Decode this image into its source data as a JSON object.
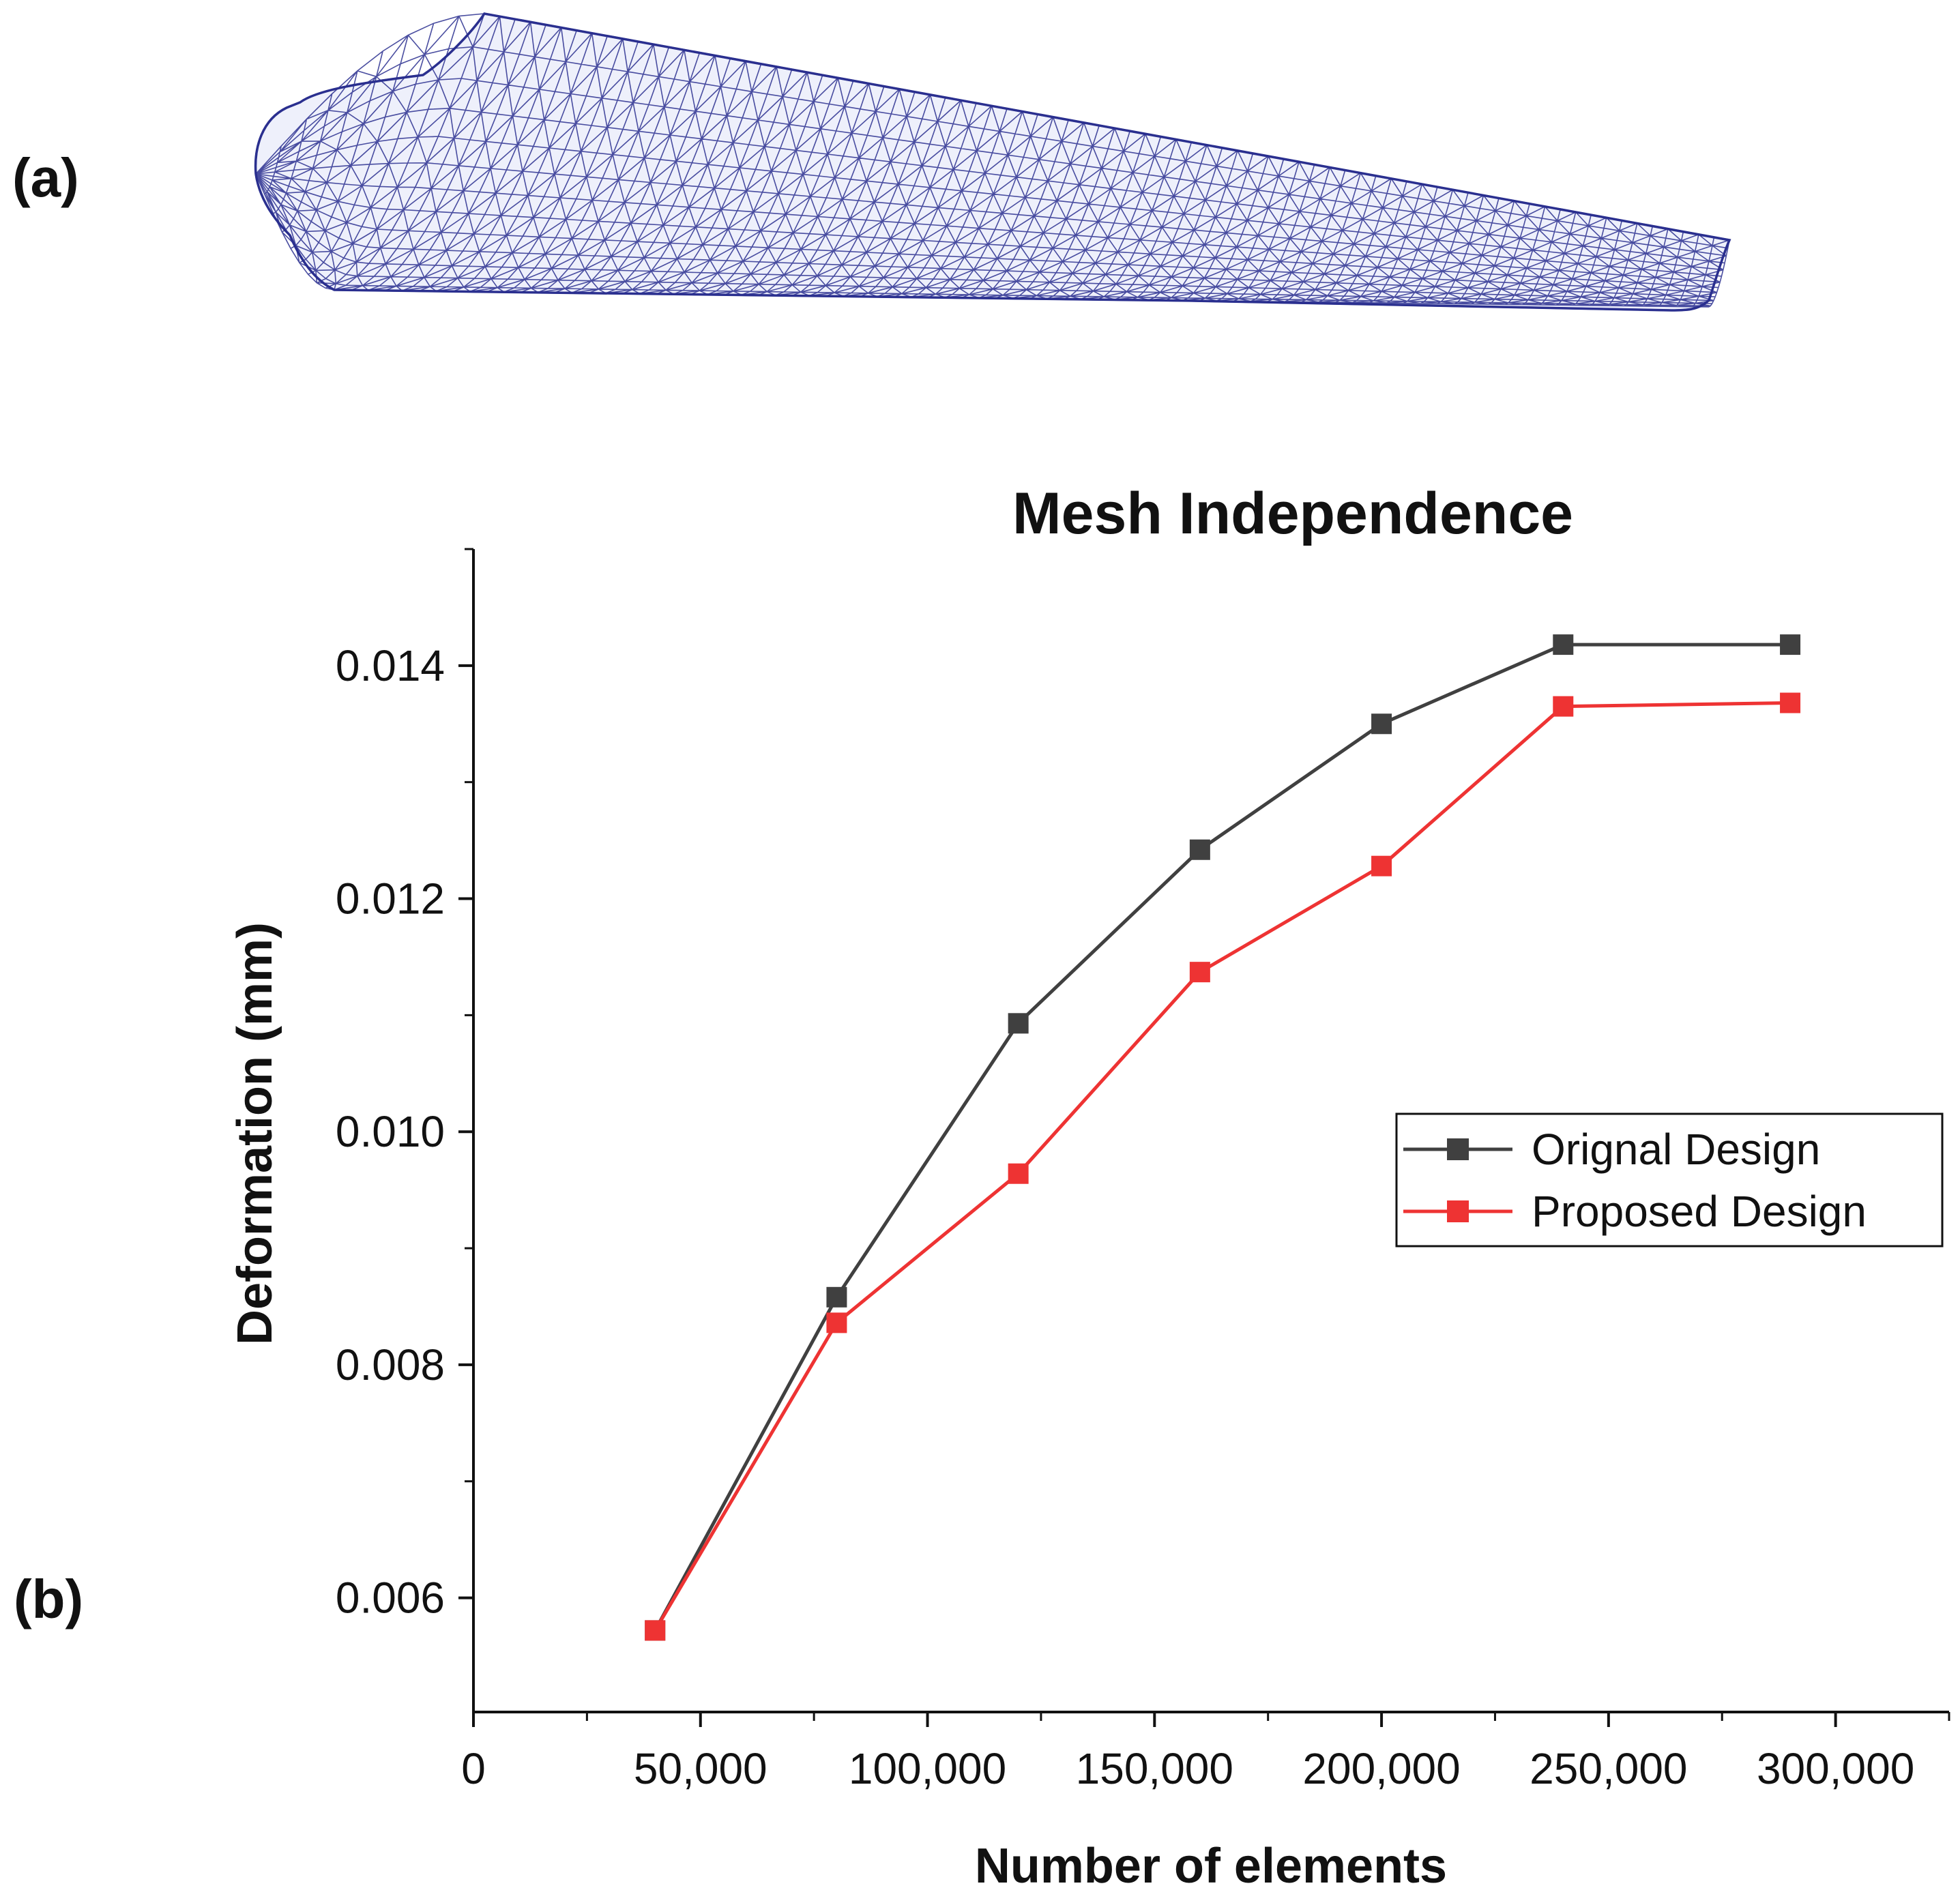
{
  "panels": {
    "a": "(a)",
    "b": "(b)"
  },
  "mesh": {
    "description_icon": "wind-turbine-blade-mesh",
    "color": "#2a2f8f"
  },
  "chart_data": {
    "type": "line",
    "title": "Mesh Independence",
    "xlabel": "Number of elements",
    "ylabel": "Deformation (mm)",
    "xlim": [
      0,
      325000
    ],
    "ylim": [
      0.00502,
      0.015
    ],
    "xticks": [
      0,
      50000,
      100000,
      150000,
      200000,
      250000,
      300000
    ],
    "xtick_labels": [
      "0",
      "50,000",
      "100,000",
      "150,000",
      "200,000",
      "250,000",
      "300,000"
    ],
    "yticks": [
      0.006,
      0.008,
      0.01,
      0.012,
      0.014
    ],
    "ytick_labels": [
      "0.006",
      "0.008",
      "0.010",
      "0.012",
      "0.014"
    ],
    "legend_position": "right",
    "series": [
      {
        "name": "Orignal Design",
        "color": "#404040",
        "x": [
          40000,
          80000,
          120000,
          160000,
          200000,
          240000,
          290000
        ],
        "y": [
          0.00572,
          0.00858,
          0.01093,
          0.01242,
          0.0135,
          0.01418,
          0.01418
        ]
      },
      {
        "name": "Proposed Design",
        "color": "#ee3333",
        "x": [
          40000,
          80000,
          120000,
          160000,
          200000,
          240000,
          290000
        ],
        "y": [
          0.00572,
          0.00836,
          0.00964,
          0.01137,
          0.01228,
          0.01365,
          0.01368
        ]
      }
    ]
  }
}
